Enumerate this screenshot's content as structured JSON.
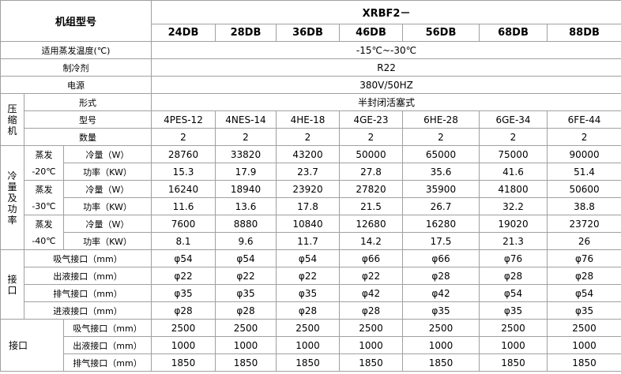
{
  "table": {
    "header": {
      "label": "机组型号",
      "series": "XRBF2－",
      "models": [
        "24DB",
        "28DB",
        "36DB",
        "46DB",
        "56DB",
        "68DB",
        "88DB"
      ]
    },
    "general": [
      {
        "label": "适用蒸发温度(℃)",
        "value": "-15℃~-30℃"
      },
      {
        "label": "制冷剂",
        "value": "R22"
      },
      {
        "label": "电源",
        "value": "380V/50HZ"
      }
    ],
    "compressor": {
      "group": "压缩机",
      "type_label": "形式",
      "type_value": "半封闭活塞式",
      "rows": [
        {
          "label": "型号",
          "values": [
            "4PES-12",
            "4NES-14",
            "4HE-18",
            "4GE-23",
            "6HE-28",
            "6GE-34",
            "6FE-44"
          ]
        },
        {
          "label": "数量",
          "values": [
            2,
            2,
            2,
            2,
            2,
            2,
            2
          ]
        }
      ]
    },
    "capacity": {
      "group": "冷量及功率",
      "blocks": [
        {
          "condition": [
            "蒸发",
            "-20℃"
          ],
          "rows": [
            {
              "label": "冷量（W）",
              "values": [
                28760,
                33820,
                43200,
                50000,
                65000,
                75000,
                90000
              ]
            },
            {
              "label": "功率（KW）",
              "values": [
                15.3,
                17.9,
                23.7,
                27.8,
                35.6,
                41.6,
                51.4
              ]
            }
          ]
        },
        {
          "condition": [
            "蒸发",
            "-30℃"
          ],
          "rows": [
            {
              "label": "冷量（W）",
              "values": [
                16240,
                18940,
                23920,
                27820,
                35900,
                41800,
                50600
              ]
            },
            {
              "label": "功率（KW）",
              "values": [
                11.6,
                13.6,
                17.8,
                21.5,
                26.7,
                32.2,
                38.8
              ]
            }
          ]
        },
        {
          "condition": [
            "蒸发",
            "-40℃"
          ],
          "rows": [
            {
              "label": "冷量（W）",
              "values": [
                7600,
                8880,
                10840,
                12680,
                16280,
                19020,
                23720
              ]
            },
            {
              "label": "功率（KW）",
              "values": [
                8.1,
                9.6,
                11.7,
                14.2,
                17.5,
                21.3,
                26
              ]
            }
          ]
        }
      ]
    },
    "connections": {
      "group": "接口",
      "rows": [
        {
          "label": "吸气接口（mm）",
          "values": [
            "φ54",
            "φ54",
            "φ54",
            "φ66",
            "φ66",
            "φ76",
            "φ76"
          ]
        },
        {
          "label": "出液接口（mm）",
          "values": [
            "φ22",
            "φ22",
            "φ22",
            "φ22",
            "φ28",
            "φ28",
            "φ28"
          ]
        },
        {
          "label": "排气接口（mm）",
          "values": [
            "φ35",
            "φ35",
            "φ35",
            "φ42",
            "φ42",
            "φ54",
            "φ54"
          ]
        },
        {
          "label": "进液接口（mm）",
          "values": [
            "φ28",
            "φ28",
            "φ28",
            "φ28",
            "φ35",
            "φ35",
            "φ35"
          ]
        }
      ]
    },
    "connections_2": {
      "group": "接口",
      "rows": [
        {
          "label": "吸气接口（mm）",
          "values": [
            2500,
            2500,
            2500,
            2500,
            2500,
            2500,
            2500
          ]
        },
        {
          "label": "出液接口（mm）",
          "values": [
            1000,
            1000,
            1000,
            1000,
            1000,
            1000,
            1000
          ]
        },
        {
          "label": "排气接口（mm）",
          "values": [
            1850,
            1850,
            1850,
            1850,
            1850,
            1850,
            1850
          ]
        }
      ]
    }
  }
}
